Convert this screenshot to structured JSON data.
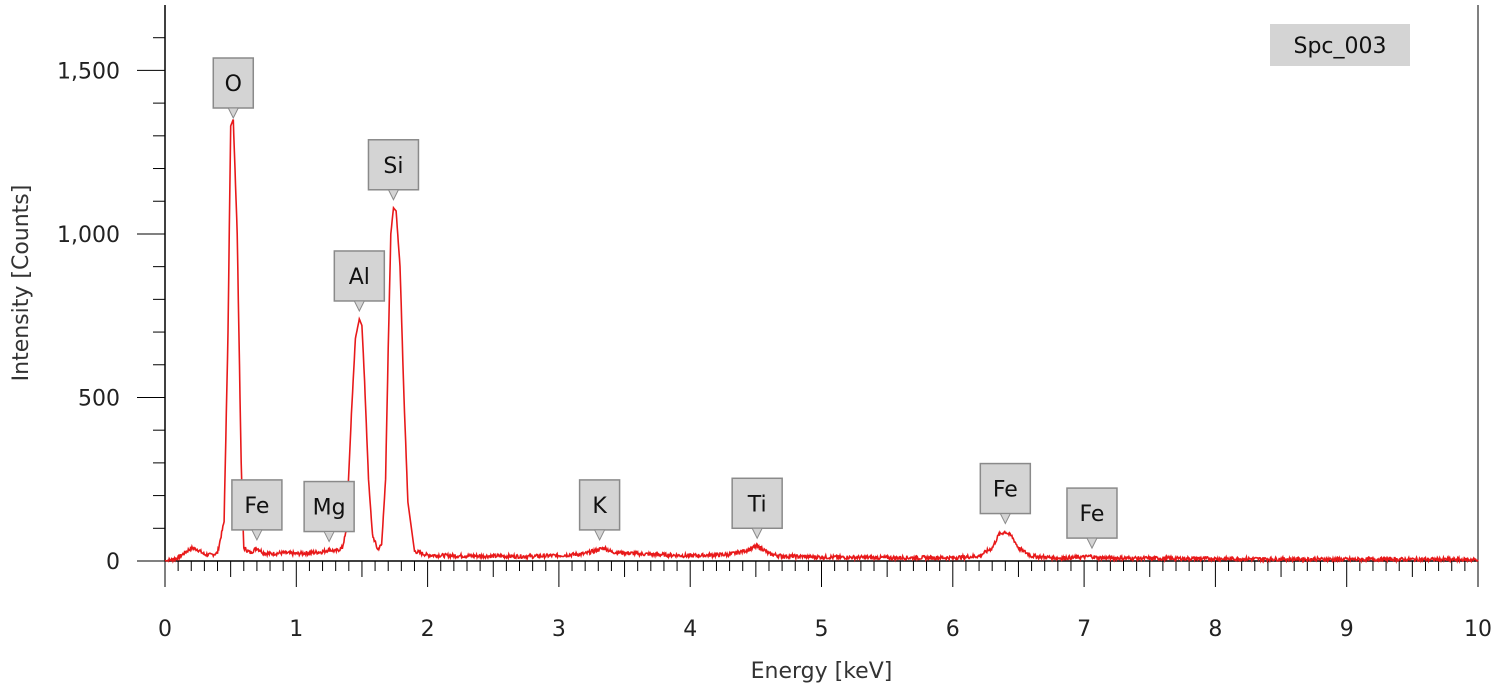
{
  "chart_data": {
    "type": "line",
    "xlabel": "Energy [keV]",
    "ylabel": "Intensity [Counts]",
    "legend": "Spc_003",
    "legend_position": "top-right",
    "xlim": [
      0,
      10
    ],
    "ylim": [
      0,
      1700
    ],
    "x_ticks": [
      0,
      1,
      2,
      3,
      4,
      5,
      6,
      7,
      8,
      9,
      10
    ],
    "x_tick_labels": [
      "0",
      "1",
      "2",
      "3",
      "4",
      "5",
      "6",
      "7",
      "8",
      "9",
      "10"
    ],
    "y_ticks": [
      0,
      500,
      1000,
      1500
    ],
    "y_tick_labels": [
      "0",
      "500",
      "1,000",
      "1,500"
    ],
    "grid": false,
    "line_color": "#e8191a",
    "label_box_color": "#d4d4d4",
    "series": [
      {
        "x": [
          0.0,
          0.06,
          0.1,
          0.15,
          0.2,
          0.25,
          0.3,
          0.35,
          0.4,
          0.45,
          0.48,
          0.5,
          0.52,
          0.55,
          0.58,
          0.6,
          0.65,
          0.7,
          0.75,
          0.8,
          0.9,
          1.0,
          1.1,
          1.2,
          1.25,
          1.3,
          1.35,
          1.38,
          1.42,
          1.45,
          1.48,
          1.5,
          1.52,
          1.55,
          1.58,
          1.62,
          1.65,
          1.68,
          1.7,
          1.72,
          1.74,
          1.76,
          1.79,
          1.82,
          1.85,
          1.9,
          2.0,
          2.2,
          2.5,
          2.8,
          3.0,
          3.2,
          3.3,
          3.35,
          3.4,
          3.6,
          4.0,
          4.3,
          4.45,
          4.5,
          4.55,
          4.6,
          4.7,
          5.0,
          5.5,
          6.0,
          6.2,
          6.3,
          6.35,
          6.4,
          6.45,
          6.5,
          6.6,
          6.8,
          7.0,
          7.05,
          7.1,
          7.5,
          8.0,
          8.5,
          9.0,
          9.5,
          10.0
        ],
        "y": [
          0,
          5,
          10,
          25,
          40,
          35,
          20,
          18,
          25,
          120,
          700,
          1330,
          1350,
          1000,
          300,
          40,
          25,
          40,
          25,
          22,
          25,
          22,
          25,
          28,
          35,
          30,
          40,
          90,
          450,
          680,
          740,
          720,
          550,
          250,
          80,
          35,
          50,
          250,
          650,
          1000,
          1080,
          1070,
          900,
          500,
          180,
          30,
          18,
          16,
          15,
          14,
          17,
          22,
          35,
          40,
          28,
          22,
          16,
          20,
          35,
          45,
          38,
          22,
          15,
          12,
          10,
          10,
          15,
          40,
          80,
          90,
          75,
          40,
          15,
          9,
          12,
          15,
          10,
          8,
          7,
          6,
          5,
          5,
          4
        ]
      }
    ],
    "peak_labels": [
      {
        "label": "O",
        "x": 0.52,
        "y": 1330
      },
      {
        "label": "Fe",
        "x": 0.7,
        "y": 40
      },
      {
        "label": "Mg",
        "x": 1.25,
        "y": 35
      },
      {
        "label": "Al",
        "x": 1.48,
        "y": 740
      },
      {
        "label": "Si",
        "x": 1.74,
        "y": 1080
      },
      {
        "label": "K",
        "x": 3.31,
        "y": 40
      },
      {
        "label": "Ti",
        "x": 4.51,
        "y": 45
      },
      {
        "label": "Fe",
        "x": 6.4,
        "y": 90
      },
      {
        "label": "Fe",
        "x": 7.06,
        "y": 15
      }
    ]
  }
}
